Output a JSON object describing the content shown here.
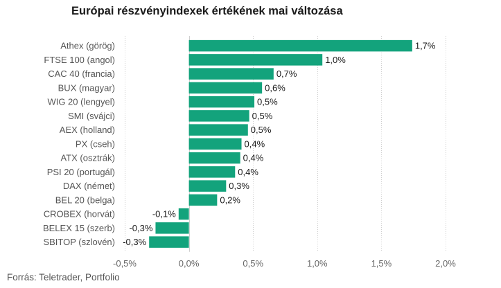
{
  "chart_data": {
    "type": "bar",
    "orientation": "horizontal",
    "title": "Európai részvényindexek értékének mai változása",
    "source": "Forrás: Teletrader, Portfolio",
    "categories": [
      "Athex (görög)",
      "FTSE 100 (angol)",
      "CAC 40 (francia)",
      "BUX (magyar)",
      "WIG 20 (lengyel)",
      "SMI (svájci)",
      "AEX (holland)",
      "PX (cseh)",
      "ATX (osztrák)",
      "PSI 20 (portugál)",
      "DAX (német)",
      "BEL 20 (belga)",
      "CROBEX (horvát)",
      "BELEX 15 (szerb)",
      "SBITOP (szlovén)"
    ],
    "values": [
      1.74,
      1.04,
      0.66,
      0.57,
      0.51,
      0.47,
      0.46,
      0.41,
      0.4,
      0.36,
      0.29,
      0.22,
      -0.08,
      -0.26,
      -0.31
    ],
    "value_labels": [
      "1,7%",
      "1,0%",
      "0,7%",
      "0,6%",
      "0,5%",
      "0,5%",
      "0,5%",
      "0,4%",
      "0,4%",
      "0,4%",
      "0,3%",
      "0,2%",
      "-0,1%",
      "-0,3%",
      "-0,3%"
    ],
    "xlim": [
      -0.5,
      2.0
    ],
    "xticks": [
      -0.5,
      0,
      0.5,
      1.0,
      1.5,
      2.0
    ],
    "xtick_labels": [
      "-0,5%",
      "0,0%",
      "0,5%",
      "1,0%",
      "1,5%",
      "2,0%"
    ],
    "grid": "vertical dotted",
    "bar_color": "#13a37c"
  }
}
